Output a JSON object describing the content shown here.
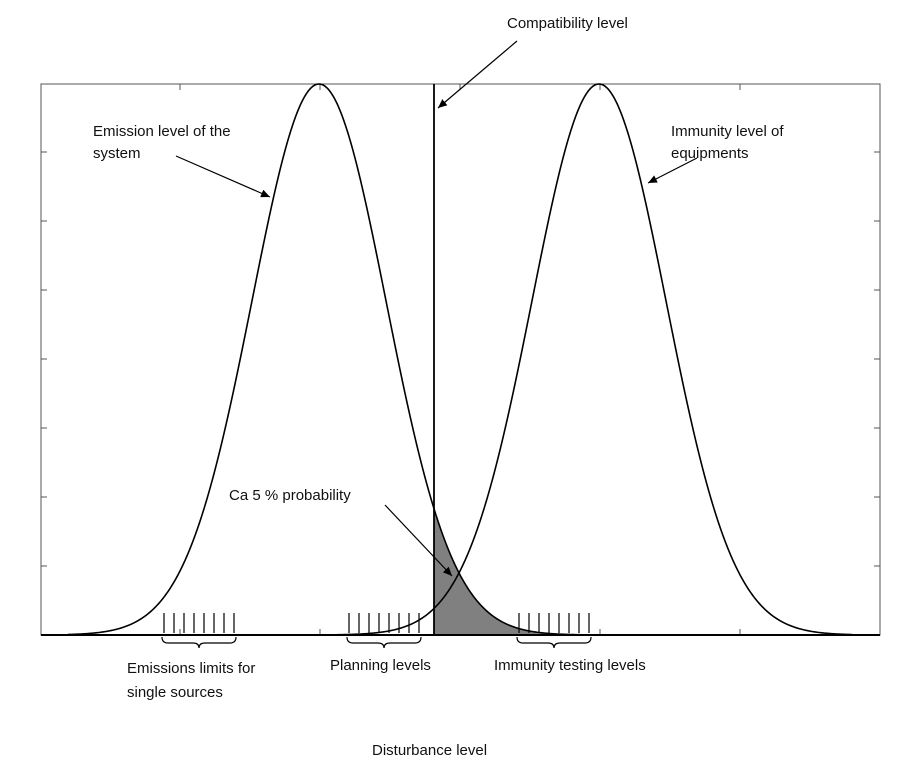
{
  "labels": {
    "compatibility_level": "Compatibility level",
    "emission_line1": "Emission level of the",
    "emission_line2": "system",
    "immunity_line1": "Immunity level of",
    "immunity_line2": "equipments",
    "probability": "Ca 5 % probability",
    "emissions_limits_line1": "Emissions limits for",
    "emissions_limits_line2": "single sources",
    "planning_levels": "Planning levels",
    "immunity_testing_levels": "Immunity testing levels",
    "x_axis": "Disturbance level"
  },
  "colors": {
    "curve": "#000000",
    "shaded_area": "#808080",
    "frame": "#555555"
  }
}
